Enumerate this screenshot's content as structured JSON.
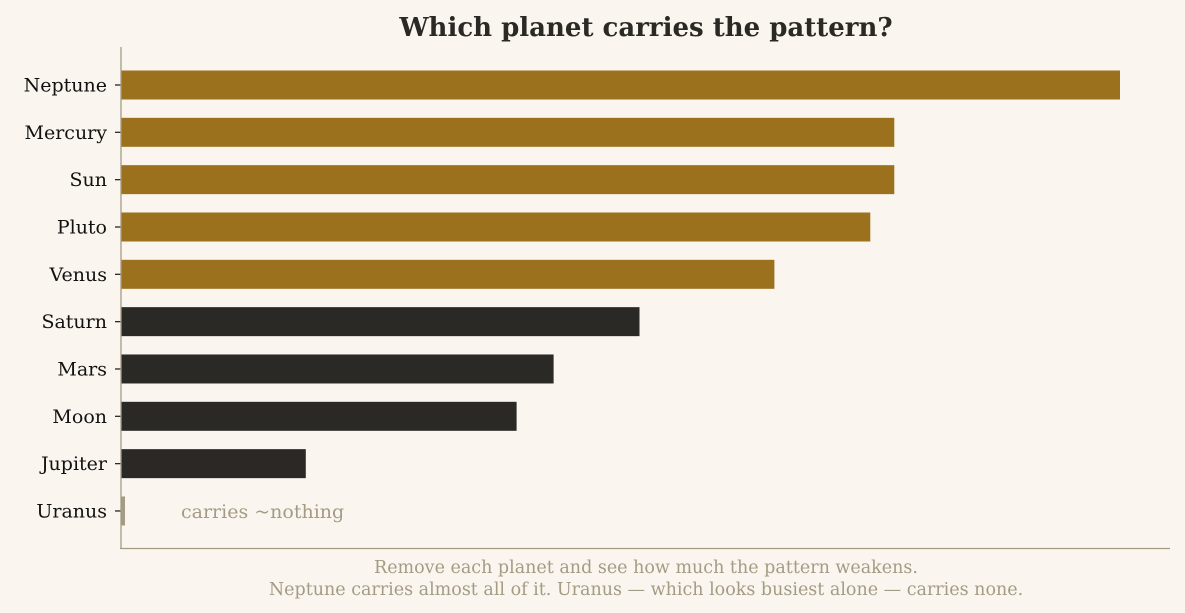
{
  "chart_data": {
    "type": "bar",
    "orientation": "horizontal",
    "title": "Which planet carries the pattern?",
    "categories": [
      "Neptune",
      "Mercury",
      "Sun",
      "Pluto",
      "Venus",
      "Saturn",
      "Mars",
      "Moon",
      "Jupiter",
      "Uranus"
    ],
    "values": [
      1.0,
      0.774,
      0.774,
      0.75,
      0.654,
      0.519,
      0.433,
      0.396,
      0.185,
      0.004
    ],
    "highlight": [
      "high",
      "high",
      "high",
      "high",
      "high",
      "low",
      "low",
      "low",
      "low",
      "none"
    ],
    "xlim": [
      0,
      1.05
    ],
    "x_ticks_visible": false,
    "grid": false,
    "colors": {
      "high": "#9c711e",
      "low": "#2a2925",
      "none": "#a49b84"
    },
    "annotation": "carries ~nothing",
    "caption": [
      "Remove each planet and see how much the pattern weakens.",
      "Neptune carries almost all of it. Uranus — which looks busiest alone — carries none."
    ]
  }
}
